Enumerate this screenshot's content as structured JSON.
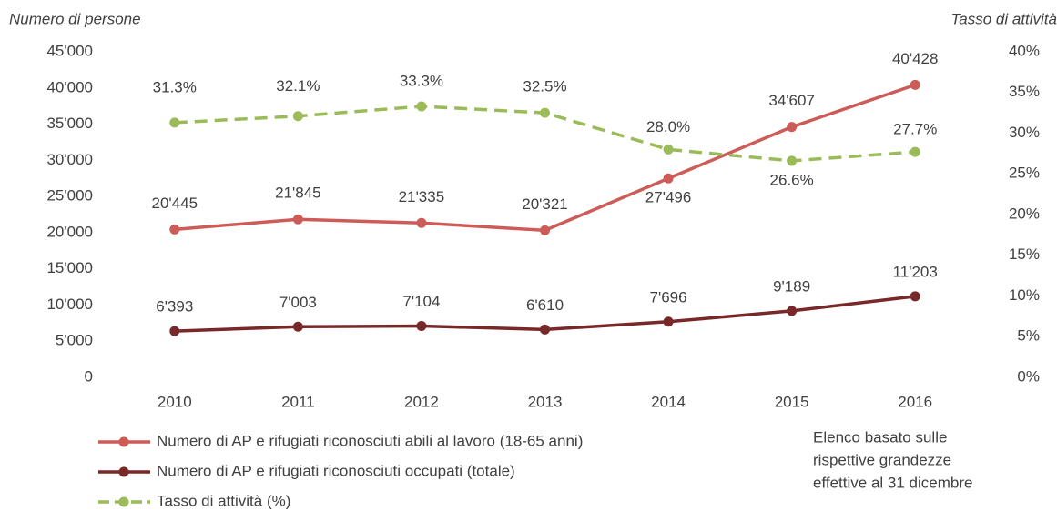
{
  "chart_data": {
    "type": "line",
    "ylabel": "Numero di persone",
    "y2label": "Tasso di attività",
    "categories": [
      "2010",
      "2011",
      "2012",
      "2013",
      "2014",
      "2015",
      "2016"
    ],
    "ylim": [
      0,
      45000
    ],
    "yticks": [
      {
        "value": 0,
        "label": "0"
      },
      {
        "value": 5000,
        "label": "5'000"
      },
      {
        "value": 10000,
        "label": "10'000"
      },
      {
        "value": 15000,
        "label": "15'000"
      },
      {
        "value": 20000,
        "label": "20'000"
      },
      {
        "value": 25000,
        "label": "25'000"
      },
      {
        "value": 30000,
        "label": "30'000"
      },
      {
        "value": 35000,
        "label": "35'000"
      },
      {
        "value": 40000,
        "label": "40'000"
      },
      {
        "value": 45000,
        "label": "45'000"
      }
    ],
    "y2lim": [
      0,
      40
    ],
    "y2ticks": [
      {
        "value": 0,
        "label": "0%"
      },
      {
        "value": 5,
        "label": "5%"
      },
      {
        "value": 10,
        "label": "10%"
      },
      {
        "value": 15,
        "label": "15%"
      },
      {
        "value": 20,
        "label": "20%"
      },
      {
        "value": 25,
        "label": "25%"
      },
      {
        "value": 30,
        "label": "30%"
      },
      {
        "value": 35,
        "label": "35%"
      },
      {
        "value": 40,
        "label": "40%"
      }
    ],
    "grid": false,
    "series": [
      {
        "name": "Numero di AP e rifugiati riconosciuti abili al lavoro (18-65 anni)",
        "color": "#cd5c58",
        "dashed": false,
        "values": [
          20445,
          21845,
          21335,
          20321,
          27496,
          34607,
          40428
        ],
        "value_labels": [
          "20'445",
          "21'845",
          "21'335",
          "20'321",
          "27'496",
          "34'607",
          "40'428"
        ]
      },
      {
        "name": "Numero di AP e rifugiati riconosciuti occupati (totale)",
        "color": "#782828",
        "dashed": false,
        "values": [
          6393,
          7003,
          7104,
          6610,
          7696,
          9189,
          11203
        ],
        "value_labels": [
          "6'393",
          "7'003",
          "7'104",
          "6'610",
          "7'696",
          "9'189",
          "11'203"
        ]
      },
      {
        "name": "Tasso di attività (%)",
        "color": "#9bbb59",
        "dashed": true,
        "axis": "y2",
        "values": [
          31.3,
          32.1,
          33.3,
          32.5,
          28.0,
          26.6,
          27.7
        ],
        "value_labels": [
          "31.3%",
          "32.1%",
          "33.3%",
          "32.5%",
          "28.0%",
          "26.6%",
          "27.7%"
        ]
      }
    ],
    "note": [
      "Elenco basato sulle",
      "rispettive grandezze",
      "effettive al 31 dicembre"
    ]
  }
}
